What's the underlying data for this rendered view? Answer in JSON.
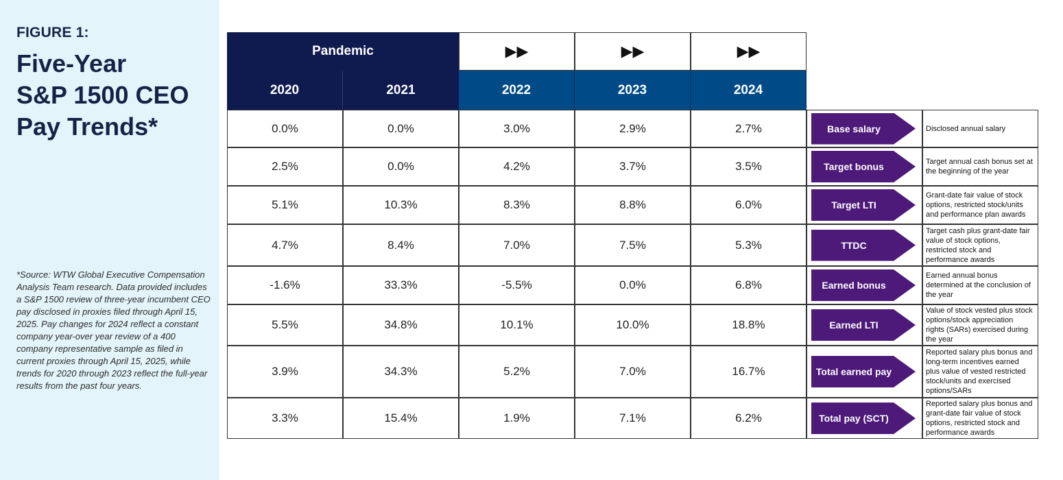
{
  "sidebar": {
    "figure_label": "FIGURE 1:",
    "title_lines": [
      "Five-Year",
      "S&P 1500 CEO",
      "Pay Trends*"
    ],
    "source_note": "*Source: WTW Global Executive Compensation Analysis Team research. Data provided includes a S&P 1500 review of three-year incumbent CEO pay disclosed in proxies filed through April 15, 2025. Pay changes for 2024 reflect a constant company year-over year review of a 400 company representative sample as filed in current proxies through April 15, 2025, while trends for 2020 through 2023 reflect the full-year results from the past four years."
  },
  "colors": {
    "sidebar_bg": "#e4f4fb",
    "title": "#162347",
    "pandemic_header": "#0f1a4e",
    "year_header_recent": "#004b87",
    "label_arrow": "#4e1a7a"
  },
  "chart_data": {
    "type": "table",
    "period_headers": {
      "pandemic": "Pandemic",
      "forward_symbol": "▶▶"
    },
    "columns": [
      "2020",
      "2021",
      "2022",
      "2023",
      "2024"
    ],
    "rows": [
      {
        "label": "Base salary",
        "values": [
          "0.0%",
          "0.0%",
          "3.0%",
          "2.9%",
          "2.7%"
        ],
        "description": "Disclosed annual salary"
      },
      {
        "label": "Target bonus",
        "values": [
          "2.5%",
          "0.0%",
          "4.2%",
          "3.7%",
          "3.5%"
        ],
        "description": "Target annual cash bonus set at the beginning of the year"
      },
      {
        "label": "Target LTI",
        "values": [
          "5.1%",
          "10.3%",
          "8.3%",
          "8.8%",
          "6.0%"
        ],
        "description": "Grant-date fair value of stock options, restricted stock/units and performance plan awards"
      },
      {
        "label": "TTDC",
        "values": [
          "4.7%",
          "8.4%",
          "7.0%",
          "7.5%",
          "5.3%"
        ],
        "description": "Target cash plus grant-date fair value of stock options, restricted stock and performance awards"
      },
      {
        "label": "Earned bonus",
        "values": [
          "-1.6%",
          "33.3%",
          "-5.5%",
          "0.0%",
          "6.8%"
        ],
        "description": "Earned annual bonus determined at the conclusion of the year"
      },
      {
        "label": "Earned LTI",
        "values": [
          "5.5%",
          "34.8%",
          "10.1%",
          "10.0%",
          "18.8%"
        ],
        "description": "Value of stock vested plus stock options/stock appreciation rights (SARs) exercised during the year"
      },
      {
        "label": "Total earned pay",
        "values": [
          "3.9%",
          "34.3%",
          "5.2%",
          "7.0%",
          "16.7%"
        ],
        "description": "Reported salary plus bonus and long-term incentives earned plus value of vested restricted stock/units and exercised options/SARs"
      },
      {
        "label": "Total pay (SCT)",
        "values": [
          "3.3%",
          "15.4%",
          "1.9%",
          "7.1%",
          "6.2%"
        ],
        "description": "Reported salary plus bonus and grant-date fair value of stock options, restricted stock and performance awards"
      }
    ]
  }
}
